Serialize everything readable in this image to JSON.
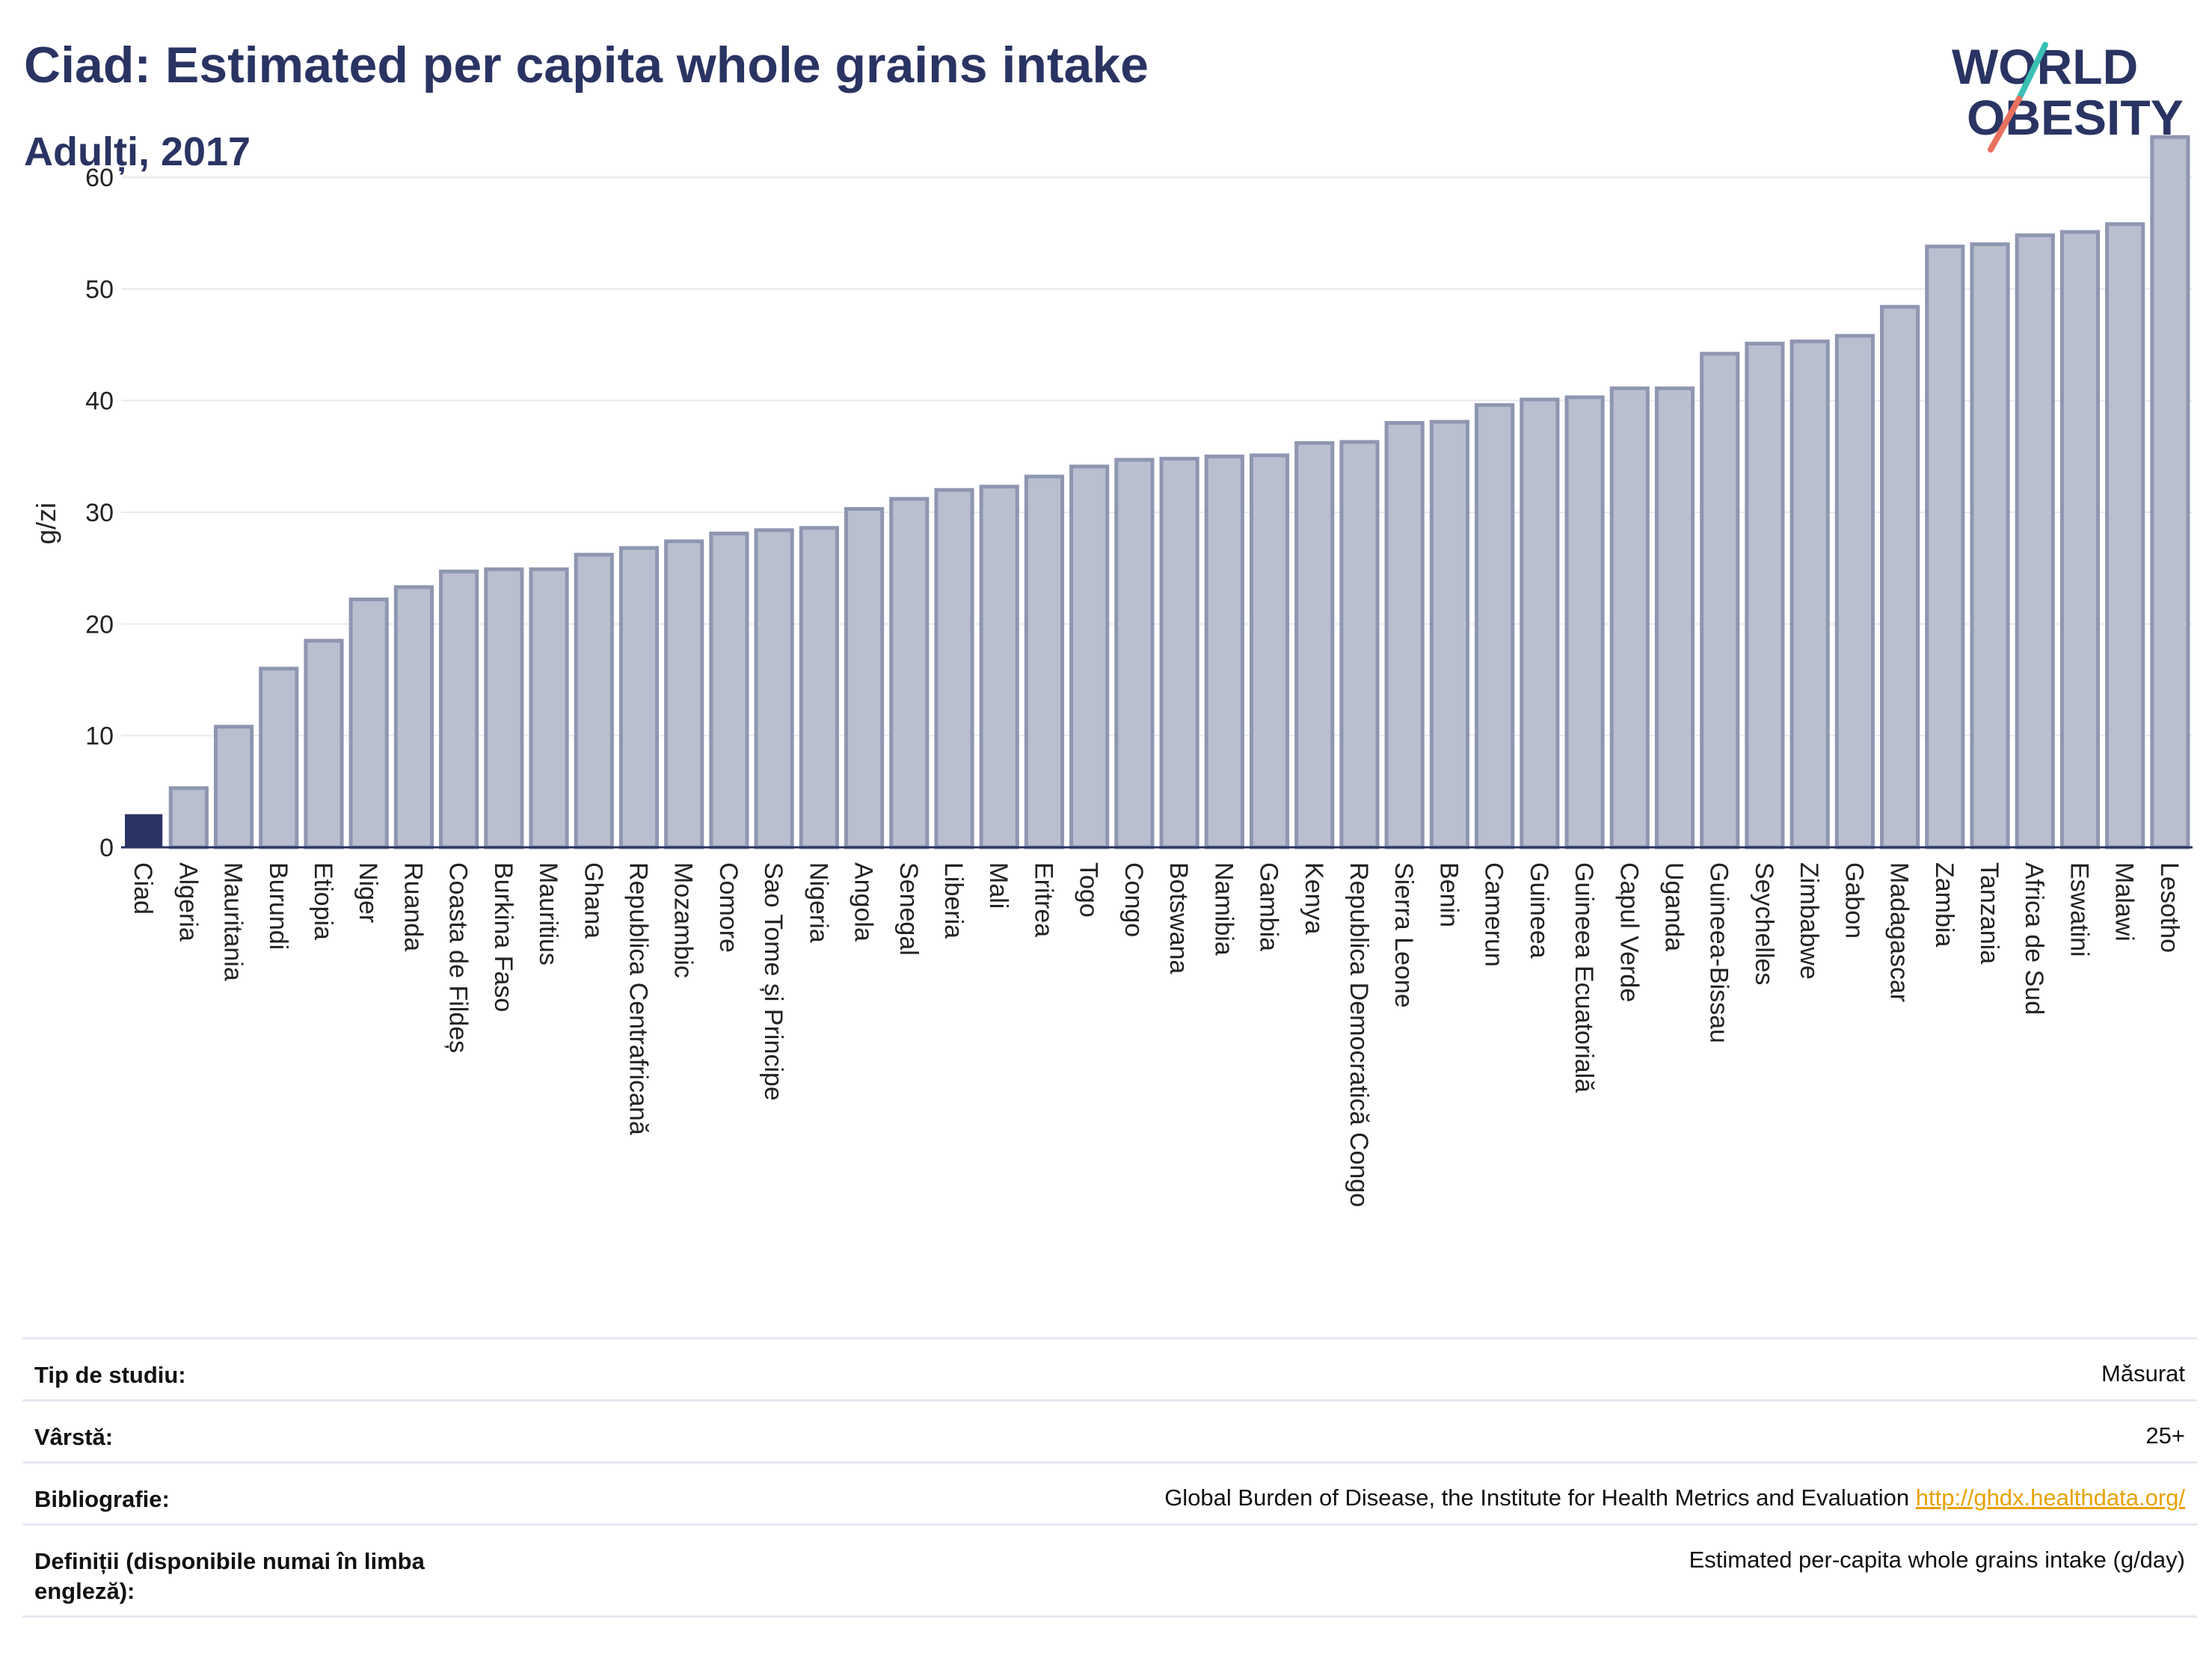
{
  "header": {
    "title": "Ciad: Estimated per capita whole grains intake",
    "subtitle": "Adulți, 2017"
  },
  "logo": {
    "line1": "WORLD",
    "line2": "OBESITY"
  },
  "colors": {
    "highlight": "#2a3463",
    "bar": "#b9bfce",
    "bar_edge": "#8f96b1",
    "axis": "#2a3463",
    "grid": "#e6e9f0",
    "link": "#e8a100"
  },
  "chart_data": {
    "type": "bar",
    "title": "Ciad: Estimated per capita whole grains intake",
    "subtitle": "Adulți, 2017",
    "xlabel": "",
    "ylabel": "g/zi",
    "ylim": [
      0,
      65
    ],
    "yticks": [
      0,
      10,
      20,
      30,
      40,
      50,
      60
    ],
    "grid": true,
    "highlight": "Ciad",
    "categories": [
      "Ciad",
      "Algeria",
      "Mauritania",
      "Burundi",
      "Etiopia",
      "Niger",
      "Ruanda",
      "Coasta de Fildeș",
      "Burkina Faso",
      "Mauritius",
      "Ghana",
      "Republica Centrafricană",
      "Mozambic",
      "Comore",
      "Sao Tome și Principe",
      "Nigeria",
      "Angola",
      "Senegal",
      "Liberia",
      "Mali",
      "Eritrea",
      "Togo",
      "Congo",
      "Botswana",
      "Namibia",
      "Gambia",
      "Kenya",
      "Republica Democratică Congo",
      "Sierra Leone",
      "Benin",
      "Camerun",
      "Guineea",
      "Guineea Ecuatorială",
      "Capul Verde",
      "Uganda",
      "Guineea-Bissau",
      "Seychelles",
      "Zimbabwe",
      "Gabon",
      "Madagascar",
      "Zambia",
      "Tanzania",
      "Africa de Sud",
      "Eswatini",
      "Malawi",
      "Lesotho"
    ],
    "values": [
      2.9,
      5.3,
      10.8,
      16.0,
      18.5,
      22.2,
      23.3,
      24.7,
      24.9,
      24.9,
      26.2,
      26.8,
      27.4,
      28.1,
      28.4,
      28.6,
      30.3,
      31.2,
      32.0,
      32.3,
      33.2,
      34.1,
      34.7,
      34.8,
      35.0,
      35.1,
      36.2,
      36.3,
      38.0,
      38.1,
      39.6,
      40.1,
      40.3,
      41.1,
      41.1,
      44.2,
      45.1,
      45.3,
      45.8,
      48.4,
      53.8,
      54.0,
      54.8,
      55.1,
      55.8,
      63.6
    ]
  },
  "meta": {
    "study_type_label": "Tip de studiu:",
    "study_type_value": "Măsurat",
    "age_label": "Vârstă:",
    "age_value": "25+",
    "bibliography_label": "Bibliografie:",
    "bibliography_text": "Global Burden of Disease, the Institute for Health Metrics and Evaluation ",
    "bibliography_link": "http://ghdx.healthdata.org/",
    "definitions_label": "Definiții (disponibile numai în limba engleză):",
    "definitions_value": "Estimated per-capita whole grains intake (g/day)"
  }
}
